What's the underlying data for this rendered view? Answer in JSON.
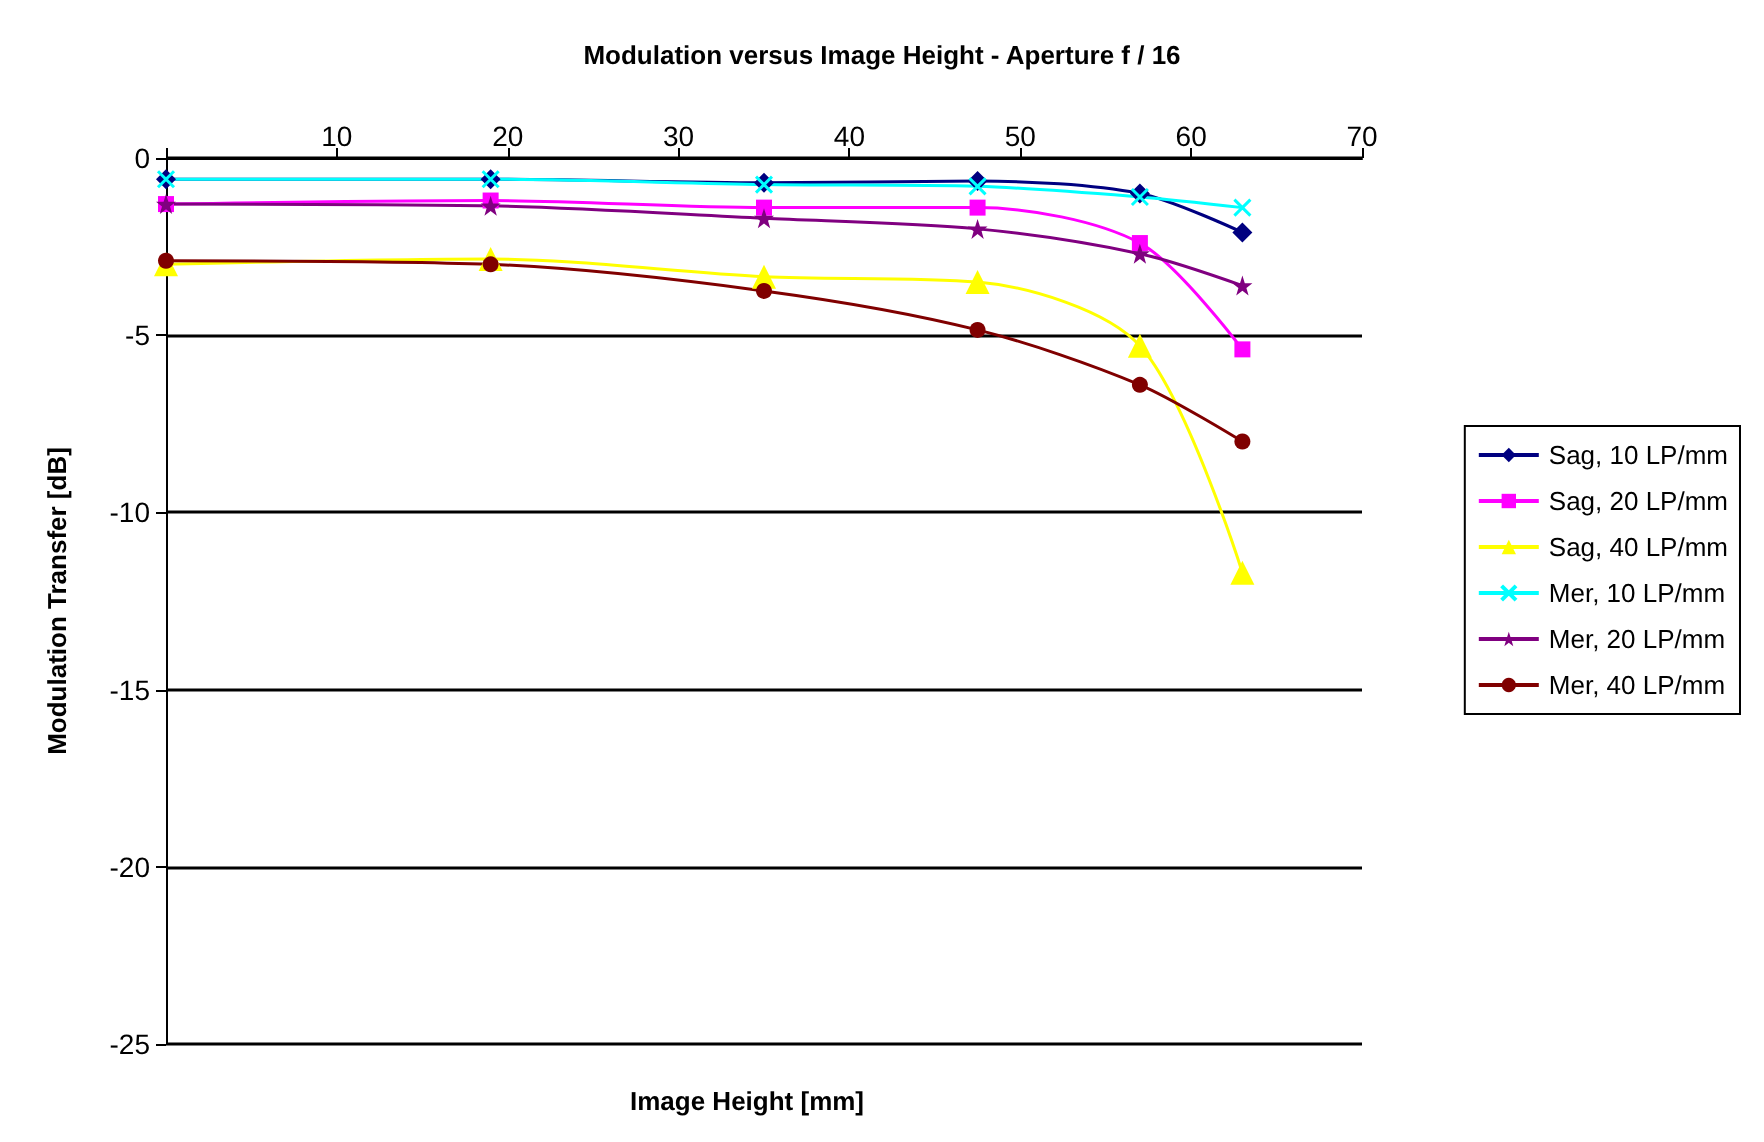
{
  "chart_data": {
    "type": "line",
    "title": "Modulation versus Image Height - Aperture f / 16",
    "xlabel": "Image Height [mm]",
    "ylabel": "Modulation Transfer [dB]",
    "x": [
      0,
      19,
      35,
      47.5,
      57,
      63
    ],
    "series": [
      {
        "name": "Sag, 10 LP/mm",
        "color": "#000080",
        "marker": "diamond",
        "values": [
          -0.6,
          -0.6,
          -0.7,
          -0.65,
          -1.0,
          -2.1
        ]
      },
      {
        "name": "Sag, 20 LP/mm",
        "color": "#ff00ff",
        "marker": "square",
        "values": [
          -1.3,
          -1.2,
          -1.4,
          -1.4,
          -2.4,
          -5.4
        ]
      },
      {
        "name": "Sag, 40 LP/mm",
        "color": "#ffff00",
        "marker": "triangle",
        "values": [
          -3.0,
          -2.85,
          -3.35,
          -3.5,
          -5.3,
          -11.7
        ]
      },
      {
        "name": "Mer, 10 LP/mm",
        "color": "#00ffff",
        "marker": "cross",
        "values": [
          -0.6,
          -0.6,
          -0.75,
          -0.8,
          -1.1,
          -1.4
        ]
      },
      {
        "name": "Mer, 20 LP/mm",
        "color": "#800080",
        "marker": "star",
        "values": [
          -1.3,
          -1.35,
          -1.7,
          -2.0,
          -2.7,
          -3.6
        ]
      },
      {
        "name": "Mer, 40 LP/mm",
        "color": "#800000",
        "marker": "circle",
        "values": [
          -2.9,
          -3.0,
          -3.75,
          -4.85,
          -6.4,
          -8.0
        ]
      }
    ],
    "xlim": [
      0,
      70
    ],
    "xticks": [
      {
        "value": 0,
        "label": null
      },
      10,
      20,
      30,
      40,
      50,
      60,
      70
    ],
    "ylim": [
      -25,
      0
    ],
    "yticks": [
      -25,
      -20,
      -15,
      -10,
      -5,
      0
    ],
    "grid": "y",
    "legend": "right",
    "line_style": "solid"
  }
}
